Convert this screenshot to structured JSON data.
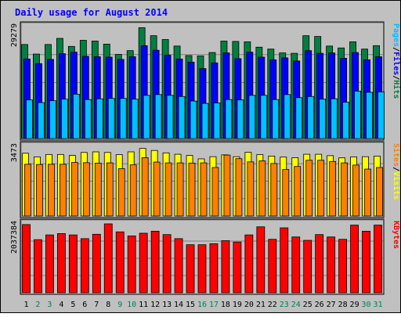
{
  "chart_data": {
    "type": "bar",
    "title": "Daily usage for August 2014",
    "categories": [
      "1",
      "2",
      "3",
      "4",
      "5",
      "6",
      "7",
      "8",
      "9",
      "10",
      "11",
      "12",
      "13",
      "14",
      "15",
      "16",
      "17",
      "18",
      "19",
      "20",
      "21",
      "22",
      "23",
      "24",
      "25",
      "26",
      "27",
      "28",
      "29",
      "30",
      "31"
    ],
    "weekend_days": [
      "2",
      "3",
      "9",
      "10",
      "16",
      "17",
      "23",
      "24",
      "30",
      "31"
    ],
    "panels": [
      {
        "id": "traffic",
        "max_label": "29279",
        "ylim": [
          0,
          29279
        ],
        "legend": [
          "Pages",
          "/",
          "Files",
          "/",
          "Hits"
        ],
        "legend_colors": [
          "#00c0ff",
          "#000000",
          "#0000ff",
          "#000000",
          "#008040"
        ],
        "series": [
          {
            "name": "Hits",
            "color": "#008040",
            "values": [
              24600,
              22100,
              24600,
              26200,
              24100,
              25700,
              25500,
              24700,
              22000,
              23000,
              29000,
              26900,
              25900,
              24200,
              21700,
              21600,
              22500,
              25500,
              25400,
              25300,
              23900,
              23400,
              22400,
              22300,
              26900,
              26700,
              24200,
              23700,
              25300,
              23400,
              24300
            ]
          },
          {
            "name": "Files",
            "color": "#0000ff",
            "values": [
              20800,
              19600,
              20700,
              22200,
              22600,
              21500,
              21400,
              21300,
              20700,
              21400,
              24300,
              23100,
              21800,
              20800,
              20000,
              18300,
              19800,
              22400,
              20900,
              22600,
              21300,
              20600,
              21100,
              20300,
              23000,
              22300,
              22400,
              21000,
              22500,
              20600,
              21400
            ]
          },
          {
            "name": "Pages",
            "color": "#00c0ff",
            "values": [
              10100,
              9400,
              9900,
              10300,
              11600,
              10200,
              10400,
              10500,
              10500,
              10300,
              11300,
              11500,
              11300,
              11000,
              9800,
              9200,
              9300,
              10200,
              10100,
              11300,
              11300,
              10200,
              11500,
              10700,
              11000,
              10300,
              10400,
              9500,
              12400,
              12100,
              12200
            ]
          }
        ]
      },
      {
        "id": "visits",
        "max_label": "3473",
        "ylim": [
          0,
          3473
        ],
        "legend": [
          "Sites",
          "/",
          "Visits"
        ],
        "legend_colors": [
          "#ff8000",
          "#000000",
          "#ffff00"
        ],
        "series": [
          {
            "name": "Visits",
            "color": "#ffff00",
            "values": [
              3130,
              2950,
              3070,
              3070,
              3020,
              3170,
              3200,
              3170,
              3060,
              3200,
              3370,
              3270,
              3150,
              3080,
              3020,
              2850,
              2960,
              3050,
              2960,
              3180,
              3060,
              2990,
              2940,
              2910,
              3080,
              3080,
              3010,
              2900,
              2950,
              2960,
              2990
            ]
          },
          {
            "name": "Sites",
            "color": "#ff8000",
            "values": [
              2580,
              2570,
              2580,
              2580,
              2670,
              2660,
              2640,
              2650,
              2360,
              2550,
              2910,
              2690,
              2650,
              2650,
              2640,
              2650,
              2420,
              3040,
              2860,
              2700,
              2750,
              2620,
              2320,
              2470,
              2780,
              2780,
              2720,
              2650,
              2540,
              2340,
              2420
            ]
          }
        ]
      },
      {
        "id": "kbytes",
        "max_label": "2037384",
        "ylim": [
          0,
          2037384
        ],
        "legend": [
          "KBytes"
        ],
        "legend_colors": [
          "#ff0000"
        ],
        "series": [
          {
            "name": "KBytes",
            "color": "#ff0000",
            "values": [
              2017000,
              1570000,
              1710000,
              1750000,
              1710000,
              1600000,
              1730000,
              2037384,
              1800000,
              1680000,
              1760000,
              1820000,
              1720000,
              1600000,
              1420000,
              1420000,
              1450000,
              1540000,
              1500000,
              1710000,
              1950000,
              1580000,
              1920000,
              1650000,
              1550000,
              1720000,
              1650000,
              1580000,
              2000000,
              1820000,
              2000000
            ]
          }
        ]
      }
    ]
  },
  "colors": {
    "background": "#c0c0c0",
    "title": "#0000ff",
    "weekday_label": "#000000",
    "weekend_label": "#00805c",
    "grid": "#808080"
  }
}
